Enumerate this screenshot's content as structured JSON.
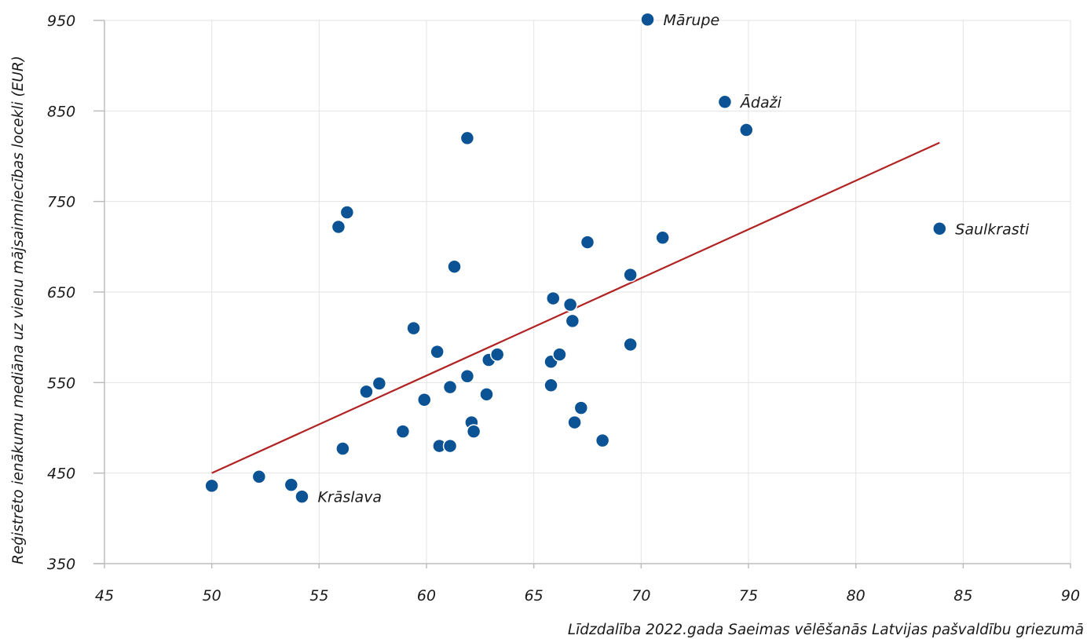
{
  "chart_data": {
    "type": "scatter",
    "title": "",
    "xlabel": "Līdzdalība 2022.gada Saeimas vēlēšanās Latvijas pašvaldību griezumā",
    "ylabel": "Reģistrēto ienākumu mediāna uz vienu mājsaimniecības locekli (EUR)",
    "xlim": [
      45,
      90
    ],
    "ylim": [
      350,
      950
    ],
    "xticks": [
      45,
      50,
      55,
      60,
      65,
      70,
      75,
      80,
      85,
      90
    ],
    "yticks": [
      350,
      450,
      550,
      650,
      750,
      850,
      950
    ],
    "grid": true,
    "colors": {
      "point": "#0b5394",
      "trend": "#b22222",
      "grid": "#e3e3e3",
      "axis": "#bdbdbd"
    },
    "series": [
      {
        "points": [
          {
            "x": 50.0,
            "y": 436
          },
          {
            "x": 52.2,
            "y": 446
          },
          {
            "x": 53.7,
            "y": 437
          },
          {
            "x": 54.2,
            "y": 424,
            "label": "Krāslava"
          },
          {
            "x": 55.9,
            "y": 722
          },
          {
            "x": 56.3,
            "y": 738
          },
          {
            "x": 56.1,
            "y": 477
          },
          {
            "x": 57.2,
            "y": 540
          },
          {
            "x": 57.8,
            "y": 549
          },
          {
            "x": 58.9,
            "y": 496
          },
          {
            "x": 59.4,
            "y": 610
          },
          {
            "x": 59.9,
            "y": 531
          },
          {
            "x": 60.5,
            "y": 584
          },
          {
            "x": 60.6,
            "y": 480
          },
          {
            "x": 61.1,
            "y": 545
          },
          {
            "x": 61.1,
            "y": 480
          },
          {
            "x": 61.3,
            "y": 678
          },
          {
            "x": 61.9,
            "y": 557
          },
          {
            "x": 61.9,
            "y": 820
          },
          {
            "x": 62.1,
            "y": 506
          },
          {
            "x": 62.2,
            "y": 496
          },
          {
            "x": 62.8,
            "y": 537
          },
          {
            "x": 62.9,
            "y": 575
          },
          {
            "x": 63.3,
            "y": 581
          },
          {
            "x": 65.8,
            "y": 547
          },
          {
            "x": 65.8,
            "y": 573
          },
          {
            "x": 65.9,
            "y": 643
          },
          {
            "x": 66.2,
            "y": 581
          },
          {
            "x": 66.7,
            "y": 636
          },
          {
            "x": 66.8,
            "y": 618
          },
          {
            "x": 66.9,
            "y": 506
          },
          {
            "x": 67.2,
            "y": 522
          },
          {
            "x": 67.5,
            "y": 705
          },
          {
            "x": 68.2,
            "y": 486
          },
          {
            "x": 69.5,
            "y": 669
          },
          {
            "x": 69.5,
            "y": 592
          },
          {
            "x": 70.3,
            "y": 951,
            "label": "Mārupe"
          },
          {
            "x": 71.0,
            "y": 710
          },
          {
            "x": 73.9,
            "y": 860,
            "label": "Ādaži"
          },
          {
            "x": 74.9,
            "y": 829
          },
          {
            "x": 83.9,
            "y": 720,
            "label": "Saulkrasti"
          }
        ]
      }
    ],
    "trendline": {
      "x": [
        50.0,
        83.9
      ],
      "y": [
        450,
        815
      ]
    }
  }
}
